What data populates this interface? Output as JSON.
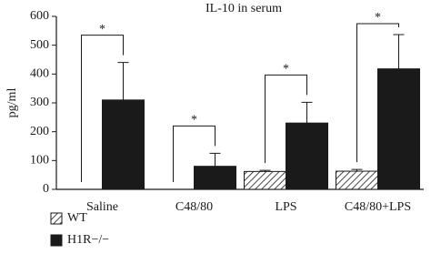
{
  "chart_data": {
    "type": "bar",
    "title": "IL-10 in serum",
    "y_label": "pg/ml",
    "categories": [
      "Saline",
      "C48/80",
      "LPS",
      "C48/80+LPS"
    ],
    "series": [
      {
        "name": "WT",
        "color": "#ffffff",
        "pattern": "hatch",
        "values": [
          0,
          0,
          62,
          63
        ],
        "errors": [
          0,
          0,
          4,
          6
        ]
      },
      {
        "name": "H1R−/−",
        "color": "#1a1a1a",
        "pattern": "solid",
        "values": [
          310,
          80,
          230,
          418
        ],
        "errors": [
          130,
          45,
          72,
          119
        ]
      }
    ],
    "significance": [
      "*",
      "*",
      "*",
      "*"
    ],
    "ylim": [
      0,
      600
    ],
    "yticks": [
      0,
      100,
      200,
      300,
      400,
      500,
      600
    ],
    "grid": false
  }
}
